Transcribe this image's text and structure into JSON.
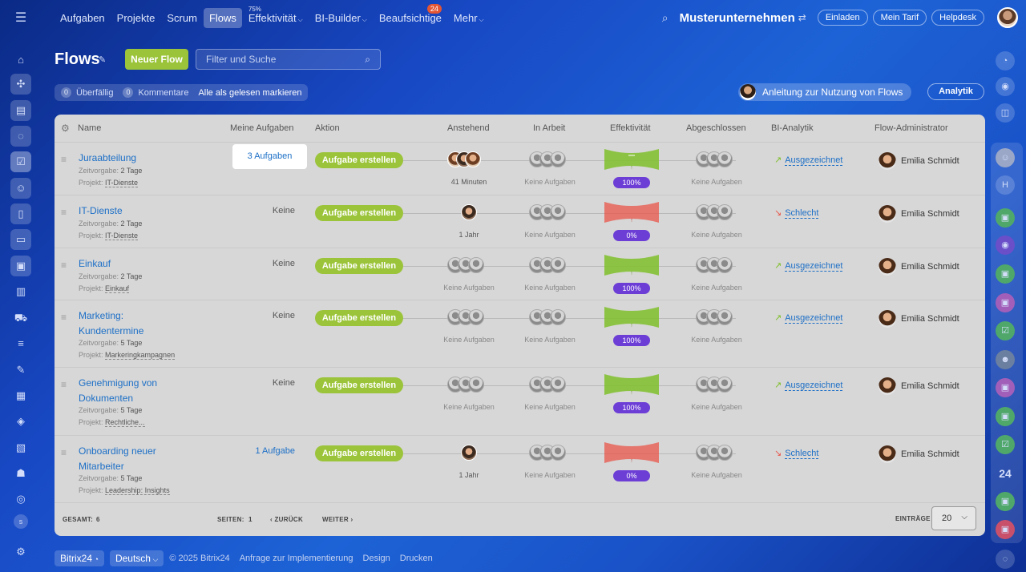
{
  "topnav": {
    "items": [
      {
        "label": "Aufgaben",
        "active": false
      },
      {
        "label": "Projekte",
        "active": false
      },
      {
        "label": "Scrum",
        "active": false
      },
      {
        "label": "Flows",
        "active": true
      },
      {
        "label": "Effektivität",
        "sup": "75%",
        "chevron": true
      },
      {
        "label": "BI-Builder",
        "chevron": true
      },
      {
        "label": "Beaufsichtige",
        "badge": "24"
      },
      {
        "label": "Mehr",
        "chevron": true
      }
    ],
    "company": "Musterunternehmen",
    "invite": "Einladen",
    "plan": "Mein Tarif",
    "helpdesk": "Helpdesk"
  },
  "page": {
    "title": "Flows",
    "new_button": "Neuer Flow",
    "search_placeholder": "Filter und Suche",
    "overdue_count": "0",
    "overdue_label": "Überfällig",
    "comments_count": "0",
    "comments_label": "Kommentare",
    "mark_all_read": "Alle als gelesen markieren",
    "guide": "Anleitung zur Nutzung von Flows",
    "analytics": "Analytik"
  },
  "columns": {
    "name": "Name",
    "my_tasks": "Meine Aufgaben",
    "action": "Aktion",
    "pending": "Anstehend",
    "in_progress": "In Arbeit",
    "efficiency": "Effektivität",
    "completed": "Abgeschlossen",
    "bi": "BI-Analytik",
    "admin": "Flow-Administrator"
  },
  "rows": [
    {
      "name": "Juraabteilung",
      "deadline_label": "Zeitvorgabe:",
      "deadline": "2 Tage",
      "project_label": "Projekt:",
      "project": "IT-Dienste",
      "my_tasks": "3 Aufgaben",
      "action": "Aufgabe erstellen",
      "pending_sub": "41 Minuten",
      "progress_sub": "Keine Aufgaben",
      "efficiency": "100%",
      "eff_state": "good",
      "completed_sub": "Keine Aufgaben",
      "bi": "Ausgezeichnet",
      "admin": "Emilia Schmidt"
    },
    {
      "name": "IT-Dienste",
      "deadline_label": "Zeitvorgabe:",
      "deadline": "2 Tage",
      "project_label": "Projekt:",
      "project": "IT-Dienste",
      "my_tasks": "Keine",
      "action": "Aufgabe erstellen",
      "pending_sub": "1 Jahr",
      "progress_sub": "Keine Aufgaben",
      "efficiency": "0%",
      "eff_state": "bad",
      "completed_sub": "Keine Aufgaben",
      "bi": "Schlecht",
      "admin": "Emilia Schmidt"
    },
    {
      "name": "Einkauf",
      "deadline_label": "Zeitvorgabe:",
      "deadline": "2 Tage",
      "project_label": "Projekt:",
      "project": "Einkauf",
      "my_tasks": "Keine",
      "action": "Aufgabe erstellen",
      "pending_sub": "Keine Aufgaben",
      "progress_sub": "Keine Aufgaben",
      "efficiency": "100%",
      "eff_state": "good",
      "completed_sub": "Keine Aufgaben",
      "bi": "Ausgezeichnet",
      "admin": "Emilia Schmidt"
    },
    {
      "name_line1": "Marketing:",
      "name_line2": "Kundentermine",
      "deadline_label": "Zeitvorgabe:",
      "deadline": "5 Tage",
      "project_label": "Projekt:",
      "project": "Markeringkampagnen",
      "my_tasks": "Keine",
      "action": "Aufgabe erstellen",
      "pending_sub": "Keine Aufgaben",
      "progress_sub": "Keine Aufgaben",
      "efficiency": "100%",
      "eff_state": "good",
      "completed_sub": "Keine Aufgaben",
      "bi": "Ausgezeichnet",
      "admin": "Emilia Schmidt"
    },
    {
      "name_line1": "Genehmigung von",
      "name_line2": "Dokumenten",
      "deadline_label": "Zeitvorgabe:",
      "deadline": "5 Tage",
      "project_label": "Projekt:",
      "project": "Rechtliche...",
      "my_tasks": "Keine",
      "action": "Aufgabe erstellen",
      "pending_sub": "Keine Aufgaben",
      "progress_sub": "Keine Aufgaben",
      "efficiency": "100%",
      "eff_state": "good",
      "completed_sub": "Keine Aufgaben",
      "bi": "Ausgezeichnet",
      "admin": "Emilia Schmidt"
    },
    {
      "name_line1": "Onboarding neuer",
      "name_line2": "Mitarbeiter",
      "deadline_label": "Zeitvorgabe:",
      "deadline": "5 Tage",
      "project_label": "Projekt:",
      "project": "Leadership: Insights",
      "my_tasks": "1 Aufgabe",
      "action": "Aufgabe erstellen",
      "pending_sub": "1 Jahr",
      "progress_sub": "Keine Aufgaben",
      "efficiency": "0%",
      "eff_state": "bad",
      "completed_sub": "Keine Aufgaben",
      "bi": "Schlecht",
      "admin": "Emilia Schmidt"
    }
  ],
  "footer": {
    "total_label": "GESAMT:",
    "total": "6",
    "pages_label": "SEITEN:",
    "pages": "1",
    "back": "ZURÜCK",
    "next": "WEITER",
    "entries_label": "EINTRÄGE",
    "entries": "20"
  },
  "bottom": {
    "brand": "Bitrix24",
    "language": "Deutsch",
    "copyright": "© 2025 Bitrix24",
    "link1": "Anfrage zur Implementierung",
    "link2": "Design",
    "link3": "Drucken"
  },
  "rightbar": {
    "badge": "24"
  },
  "colors": {
    "accent_green": "#9bc43a",
    "link_blue": "#1c6fc7",
    "eff_purple": "#6c3ed6",
    "good_green": "#7fbf2a",
    "bad_red": "#e8564a"
  }
}
